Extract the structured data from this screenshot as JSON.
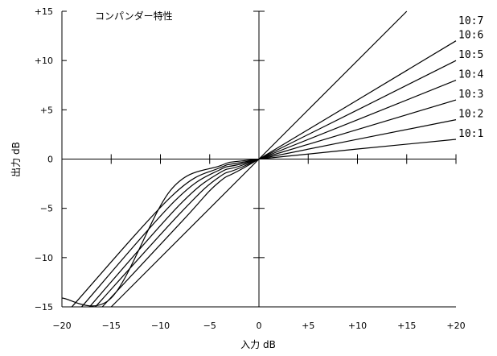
{
  "chart_data": {
    "type": "line",
    "title": "コンパンダー特性",
    "xlabel": "入力 dB",
    "ylabel": "出力 dB",
    "xlim": [
      -20,
      20
    ],
    "ylim": [
      -15,
      15
    ],
    "x_ticks": [
      -20,
      -15,
      -10,
      -5,
      0,
      5,
      10,
      15,
      20
    ],
    "x_tick_labels": [
      "−20",
      "−15",
      "−10",
      "−5",
      "0",
      "+5",
      "+10",
      "+15",
      "+20"
    ],
    "y_ticks": [
      -15,
      -10,
      -5,
      0,
      5,
      10,
      15
    ],
    "y_tick_labels": [
      "−15",
      "−10",
      "−5",
      "0",
      "+5",
      "+10",
      "+15"
    ],
    "grid": false,
    "axes_cross_at_origin": true,
    "series": [
      {
        "name": "10:1",
        "points": [
          [
            -20,
            -14.1
          ],
          [
            -15,
            -14.1
          ],
          [
            -9,
            -3.2
          ],
          [
            -4,
            -0.7
          ],
          [
            0,
            0
          ],
          [
            20,
            2.0
          ]
        ]
      },
      {
        "name": "10:2",
        "points": [
          [
            -19,
            -15
          ],
          [
            -8.8,
            -3.7
          ],
          [
            -4,
            -0.9
          ],
          [
            0,
            0
          ],
          [
            20,
            4.0
          ]
        ]
      },
      {
        "name": "10:3",
        "points": [
          [
            -18,
            -15
          ],
          [
            -8.6,
            -4.3
          ],
          [
            -4,
            -1.1
          ],
          [
            0,
            0
          ],
          [
            20,
            6.0
          ]
        ]
      },
      {
        "name": "10:4",
        "points": [
          [
            -17.2,
            -15
          ],
          [
            -8.3,
            -4.9
          ],
          [
            -4,
            -1.4
          ],
          [
            0,
            0
          ],
          [
            20,
            8.0
          ]
        ]
      },
      {
        "name": "10:5",
        "points": [
          [
            -16.6,
            -15
          ],
          [
            -8.0,
            -5.5
          ],
          [
            -4,
            -1.8
          ],
          [
            0,
            0
          ],
          [
            20,
            10.0
          ]
        ]
      },
      {
        "name": "10:6",
        "points": [
          [
            -15.9,
            -15
          ],
          [
            -7.7,
            -6.2
          ],
          [
            -4,
            -2.3
          ],
          [
            0,
            0
          ],
          [
            20,
            12.0
          ]
        ]
      },
      {
        "name": "10:7",
        "points": [
          [
            -15.0,
            -15
          ],
          [
            0,
            0
          ],
          [
            15,
            15
          ]
        ]
      }
    ]
  }
}
